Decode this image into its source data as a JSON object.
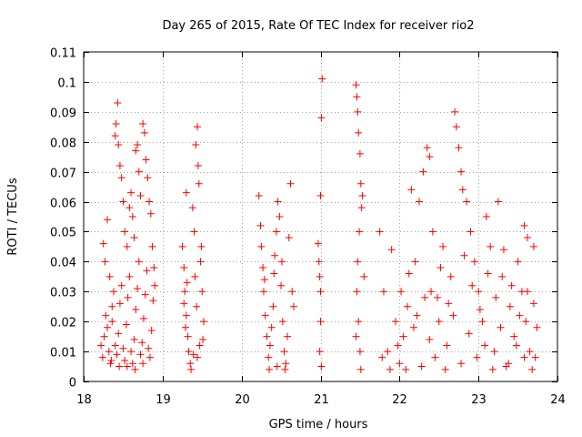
{
  "chart_data": {
    "type": "scatter",
    "title": "Day 265 of 2015, Rate Of TEC Index for receiver rio2",
    "xlabel": "GPS time / hours",
    "ylabel": "ROTI / TECUs",
    "xlim": [
      18,
      24
    ],
    "ylim": [
      0,
      0.11
    ],
    "x_ticks": [
      18,
      19,
      20,
      21,
      22,
      23,
      24
    ],
    "x_tick_labels": [
      "18",
      "19",
      "20",
      "21",
      "22",
      "23",
      "24"
    ],
    "y_ticks": [
      0,
      0.01,
      0.02,
      0.03,
      0.04,
      0.05,
      0.06,
      0.07,
      0.08,
      0.09,
      0.1,
      0.11
    ],
    "y_tick_labels": [
      "0",
      "0.01",
      "0.02",
      "0.03",
      "0.04",
      "0.05",
      "0.06",
      "0.07",
      "0.08",
      "0.09",
      "0.1",
      "0.11"
    ],
    "grid": true,
    "marker": "+",
    "marker_color": "#ff0000",
    "series": [
      {
        "name": "ROTI rio2",
        "points": [
          [
            18.25,
            0.046
          ],
          [
            18.27,
            0.04
          ],
          [
            18.3,
            0.054
          ],
          [
            18.33,
            0.035
          ],
          [
            18.36,
            0.02
          ],
          [
            18.4,
            0.082
          ],
          [
            18.41,
            0.086
          ],
          [
            18.43,
            0.093
          ],
          [
            18.44,
            0.079
          ],
          [
            18.46,
            0.072
          ],
          [
            18.48,
            0.068
          ],
          [
            18.5,
            0.06
          ],
          [
            18.52,
            0.05
          ],
          [
            18.55,
            0.045
          ],
          [
            18.58,
            0.058
          ],
          [
            18.6,
            0.063
          ],
          [
            18.62,
            0.055
          ],
          [
            18.64,
            0.048
          ],
          [
            18.66,
            0.077
          ],
          [
            18.68,
            0.079
          ],
          [
            18.7,
            0.07
          ],
          [
            18.72,
            0.062
          ],
          [
            18.75,
            0.086
          ],
          [
            18.77,
            0.083
          ],
          [
            18.79,
            0.074
          ],
          [
            18.81,
            0.068
          ],
          [
            18.83,
            0.06
          ],
          [
            18.85,
            0.056
          ],
          [
            18.87,
            0.045
          ],
          [
            18.89,
            0.038
          ],
          [
            18.22,
            0.012
          ],
          [
            18.24,
            0.008
          ],
          [
            18.26,
            0.015
          ],
          [
            18.28,
            0.022
          ],
          [
            18.3,
            0.018
          ],
          [
            18.32,
            0.01
          ],
          [
            18.34,
            0.006
          ],
          [
            18.36,
            0.025
          ],
          [
            18.38,
            0.03
          ],
          [
            18.4,
            0.012
          ],
          [
            18.42,
            0.009
          ],
          [
            18.44,
            0.016
          ],
          [
            18.46,
            0.026
          ],
          [
            18.48,
            0.032
          ],
          [
            18.5,
            0.011
          ],
          [
            18.52,
            0.007
          ],
          [
            18.54,
            0.019
          ],
          [
            18.56,
            0.028
          ],
          [
            18.58,
            0.035
          ],
          [
            18.6,
            0.01
          ],
          [
            18.62,
            0.006
          ],
          [
            18.64,
            0.014
          ],
          [
            18.66,
            0.024
          ],
          [
            18.68,
            0.031
          ],
          [
            18.7,
            0.04
          ],
          [
            18.72,
            0.009
          ],
          [
            18.74,
            0.013
          ],
          [
            18.76,
            0.021
          ],
          [
            18.78,
            0.029
          ],
          [
            18.8,
            0.037
          ],
          [
            18.82,
            0.011
          ],
          [
            18.84,
            0.008
          ],
          [
            18.86,
            0.017
          ],
          [
            18.88,
            0.027
          ],
          [
            18.9,
            0.032
          ],
          [
            18.55,
            0.005
          ],
          [
            18.65,
            0.004
          ],
          [
            18.75,
            0.006
          ],
          [
            18.45,
            0.005
          ],
          [
            18.35,
            0.007
          ],
          [
            19.25,
            0.045
          ],
          [
            19.27,
            0.038
          ],
          [
            19.28,
            0.03
          ],
          [
            19.3,
            0.022
          ],
          [
            19.32,
            0.015
          ],
          [
            19.33,
            0.01
          ],
          [
            19.35,
            0.006
          ],
          [
            19.3,
            0.063
          ],
          [
            19.38,
            0.058
          ],
          [
            19.4,
            0.05
          ],
          [
            19.42,
            0.079
          ],
          [
            19.44,
            0.085
          ],
          [
            19.45,
            0.072
          ],
          [
            19.46,
            0.066
          ],
          [
            19.48,
            0.04
          ],
          [
            19.5,
            0.03
          ],
          [
            19.52,
            0.02
          ],
          [
            19.47,
            0.012
          ],
          [
            19.44,
            0.008
          ],
          [
            19.36,
            0.004
          ],
          [
            19.27,
            0.026
          ],
          [
            19.29,
            0.018
          ],
          [
            19.41,
            0.035
          ],
          [
            19.43,
            0.025
          ],
          [
            19.49,
            0.045
          ],
          [
            19.51,
            0.014
          ],
          [
            19.39,
            0.009
          ],
          [
            19.31,
            0.033
          ],
          [
            20.22,
            0.062
          ],
          [
            20.24,
            0.052
          ],
          [
            20.25,
            0.045
          ],
          [
            20.27,
            0.038
          ],
          [
            20.28,
            0.03
          ],
          [
            20.3,
            0.022
          ],
          [
            20.32,
            0.015
          ],
          [
            20.34,
            0.008
          ],
          [
            20.36,
            0.012
          ],
          [
            20.38,
            0.018
          ],
          [
            20.4,
            0.025
          ],
          [
            20.42,
            0.042
          ],
          [
            20.44,
            0.05
          ],
          [
            20.46,
            0.06
          ],
          [
            20.48,
            0.055
          ],
          [
            20.5,
            0.032
          ],
          [
            20.52,
            0.02
          ],
          [
            20.54,
            0.01
          ],
          [
            20.56,
            0.006
          ],
          [
            20.58,
            0.015
          ],
          [
            20.6,
            0.048
          ],
          [
            20.62,
            0.066
          ],
          [
            20.64,
            0.03
          ],
          [
            20.66,
            0.025
          ],
          [
            20.35,
            0.004
          ],
          [
            20.45,
            0.005
          ],
          [
            20.55,
            0.004
          ],
          [
            20.29,
            0.034
          ],
          [
            20.41,
            0.036
          ],
          [
            20.51,
            0.04
          ],
          [
            20.97,
            0.046
          ],
          [
            20.98,
            0.04
          ],
          [
            20.99,
            0.035
          ],
          [
            21.0,
            0.062
          ],
          [
            21.01,
            0.088
          ],
          [
            21.02,
            0.101
          ],
          [
            21.0,
            0.02
          ],
          [
            20.99,
            0.01
          ],
          [
            21.01,
            0.005
          ],
          [
            21.0,
            0.03
          ],
          [
            21.45,
            0.099
          ],
          [
            21.46,
            0.095
          ],
          [
            21.47,
            0.09
          ],
          [
            21.48,
            0.083
          ],
          [
            21.5,
            0.076
          ],
          [
            21.51,
            0.066
          ],
          [
            21.52,
            0.058
          ],
          [
            21.49,
            0.05
          ],
          [
            21.47,
            0.04
          ],
          [
            21.46,
            0.03
          ],
          [
            21.48,
            0.02
          ],
          [
            21.5,
            0.01
          ],
          [
            21.51,
            0.004
          ],
          [
            21.53,
            0.062
          ],
          [
            21.55,
            0.035
          ],
          [
            21.45,
            0.015
          ],
          [
            21.75,
            0.05
          ],
          [
            21.8,
            0.03
          ],
          [
            21.85,
            0.01
          ],
          [
            21.9,
            0.044
          ],
          [
            21.95,
            0.02
          ],
          [
            22.0,
            0.006
          ],
          [
            22.05,
            0.015
          ],
          [
            22.1,
            0.025
          ],
          [
            22.15,
            0.064
          ],
          [
            22.2,
            0.04
          ],
          [
            22.25,
            0.06
          ],
          [
            22.3,
            0.07
          ],
          [
            22.35,
            0.078
          ],
          [
            22.38,
            0.075
          ],
          [
            22.4,
            0.03
          ],
          [
            22.45,
            0.008
          ],
          [
            22.5,
            0.02
          ],
          [
            22.55,
            0.045
          ],
          [
            22.6,
            0.012
          ],
          [
            22.65,
            0.035
          ],
          [
            22.7,
            0.09
          ],
          [
            22.72,
            0.085
          ],
          [
            22.75,
            0.078
          ],
          [
            22.78,
            0.07
          ],
          [
            22.8,
            0.064
          ],
          [
            22.85,
            0.06
          ],
          [
            22.9,
            0.05
          ],
          [
            22.95,
            0.04
          ],
          [
            23.0,
            0.03
          ],
          [
            23.05,
            0.02
          ],
          [
            23.1,
            0.055
          ],
          [
            23.15,
            0.045
          ],
          [
            23.2,
            0.01
          ],
          [
            23.25,
            0.06
          ],
          [
            23.3,
            0.035
          ],
          [
            23.35,
            0.005
          ],
          [
            23.4,
            0.025
          ],
          [
            23.45,
            0.015
          ],
          [
            23.5,
            0.04
          ],
          [
            23.55,
            0.03
          ],
          [
            23.6,
            0.02
          ],
          [
            23.62,
            0.048
          ],
          [
            23.65,
            0.01
          ],
          [
            23.7,
            0.026
          ],
          [
            23.72,
            0.008
          ],
          [
            21.78,
            0.008
          ],
          [
            21.88,
            0.004
          ],
          [
            21.98,
            0.012
          ],
          [
            22.08,
            0.004
          ],
          [
            22.18,
            0.018
          ],
          [
            22.28,
            0.005
          ],
          [
            22.38,
            0.014
          ],
          [
            22.48,
            0.028
          ],
          [
            22.58,
            0.004
          ],
          [
            22.68,
            0.022
          ],
          [
            22.78,
            0.006
          ],
          [
            22.88,
            0.016
          ],
          [
            22.98,
            0.008
          ],
          [
            23.08,
            0.012
          ],
          [
            23.18,
            0.004
          ],
          [
            23.28,
            0.018
          ],
          [
            23.38,
            0.006
          ],
          [
            23.48,
            0.012
          ],
          [
            23.58,
            0.008
          ],
          [
            23.68,
            0.004
          ],
          [
            22.02,
            0.03
          ],
          [
            22.12,
            0.036
          ],
          [
            22.22,
            0.022
          ],
          [
            22.32,
            0.028
          ],
          [
            22.42,
            0.05
          ],
          [
            22.52,
            0.038
          ],
          [
            22.62,
            0.026
          ],
          [
            22.82,
            0.042
          ],
          [
            22.92,
            0.032
          ],
          [
            23.02,
            0.024
          ],
          [
            23.12,
            0.036
          ],
          [
            23.22,
            0.028
          ],
          [
            23.32,
            0.044
          ],
          [
            23.42,
            0.032
          ],
          [
            23.52,
            0.022
          ],
          [
            23.62,
            0.03
          ],
          [
            23.74,
            0.018
          ],
          [
            23.7,
            0.045
          ],
          [
            23.58,
            0.052
          ]
        ]
      }
    ]
  }
}
